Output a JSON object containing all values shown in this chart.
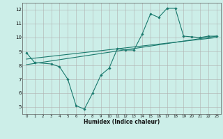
{
  "xlabel": "Humidex (Indice chaleur)",
  "bg_color": "#cceee8",
  "grid_color": "#b0b0b0",
  "line_color": "#1a7a6e",
  "x_main": [
    0,
    1,
    3,
    4,
    5,
    6,
    7,
    8,
    9,
    10,
    11,
    12,
    13,
    14,
    15,
    16,
    17,
    18,
    19,
    20,
    21,
    22,
    23
  ],
  "y_main": [
    8.9,
    8.2,
    8.1,
    7.9,
    7.0,
    5.1,
    4.85,
    6.0,
    7.3,
    7.8,
    9.2,
    9.1,
    9.1,
    10.25,
    11.7,
    11.45,
    12.1,
    12.1,
    10.1,
    10.05,
    10.0,
    10.1,
    10.1
  ],
  "reg_line1_x": [
    0,
    23
  ],
  "reg_line1_y": [
    8.05,
    10.1
  ],
  "reg_line2_x": [
    0,
    23
  ],
  "reg_line2_y": [
    8.45,
    10.0
  ],
  "xlim": [
    -0.5,
    23.5
  ],
  "ylim": [
    4.5,
    12.5
  ],
  "yticks": [
    5,
    6,
    7,
    8,
    9,
    10,
    11,
    12
  ],
  "xticks": [
    0,
    1,
    2,
    3,
    4,
    5,
    6,
    7,
    8,
    9,
    10,
    11,
    12,
    13,
    14,
    15,
    16,
    17,
    18,
    19,
    20,
    21,
    22,
    23
  ]
}
